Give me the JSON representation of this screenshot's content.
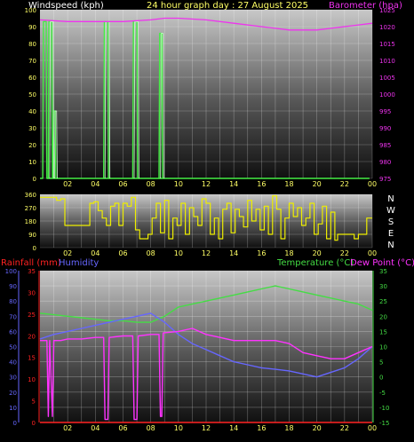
{
  "header": {
    "left_label": "Windspeed (kph)",
    "center_label": "24 hour graph day : 27 August 2025",
    "right_label": "Barometer (hpa)"
  },
  "colors": {
    "windspeed": "#44ee44",
    "gust": "#ccffcc",
    "barometer": "#ee33ee",
    "direction": "#eeee00",
    "rainfall": "#ff2222",
    "humidity": "#6666ff",
    "temperature": "#44dd44",
    "dewpoint": "#ff33ff",
    "axis_text": "#ffff66"
  },
  "x_ticks": [
    "02",
    "04",
    "06",
    "08",
    "10",
    "12",
    "14",
    "16",
    "18",
    "20",
    "22",
    "00"
  ],
  "compass": [
    "N",
    "W",
    "S",
    "E",
    "N"
  ],
  "chart_data": [
    {
      "type": "line",
      "title": "24 hour graph day : 27 August 2025",
      "xlabel": "",
      "ylabel": "Windspeed (kph)",
      "ylabel_right": "Barometer (hpa)",
      "ylim": [
        0,
        100
      ],
      "ylim_right": [
        975,
        1025
      ],
      "yticks_left": [
        0,
        10,
        20,
        30,
        40,
        50,
        60,
        70,
        80,
        90,
        100
      ],
      "yticks_right": [
        975,
        980,
        985,
        990,
        995,
        1000,
        1005,
        1010,
        1015,
        1020,
        1025
      ],
      "xlim_hours": [
        0,
        24
      ],
      "grid": true,
      "series": [
        {
          "name": "Windspeed (kph)",
          "axis": "left",
          "segments": [
            {
              "x": [
                0.0,
                0.2,
                0.25,
                0.45,
                0.5,
                23.8
              ],
              "y": [
                0,
                0,
                93,
                93,
                0,
                0
              ]
            },
            {
              "x": [
                0.6,
                0.65,
                0.85,
                0.9
              ],
              "y": [
                0,
                93,
                93,
                0
              ]
            },
            {
              "x": [
                0.95,
                1.0,
                1.1,
                1.15
              ],
              "y": [
                0,
                40,
                40,
                0
              ]
            },
            {
              "x": [
                4.6,
                4.65,
                4.9,
                4.95
              ],
              "y": [
                0,
                93,
                93,
                0
              ]
            },
            {
              "x": [
                6.7,
                6.75,
                7.0,
                7.05
              ],
              "y": [
                0,
                93,
                93,
                0
              ]
            },
            {
              "x": [
                8.6,
                8.65,
                8.8,
                8.85
              ],
              "y": [
                0,
                86,
                86,
                0
              ]
            }
          ]
        },
        {
          "name": "Barometer (hpa)",
          "axis": "right",
          "x": [
            0,
            2,
            4,
            6,
            8,
            9,
            10,
            12,
            14,
            16,
            17,
            18,
            19,
            20,
            21,
            22,
            23,
            24
          ],
          "y": [
            1022,
            1021.5,
            1021.5,
            1021.5,
            1022,
            1022.5,
            1022.5,
            1022,
            1021,
            1020,
            1019.5,
            1019,
            1019,
            1019,
            1019.5,
            1020,
            1020.5,
            1021
          ]
        }
      ]
    },
    {
      "type": "scatter",
      "ylabel": "",
      "ylim": [
        0,
        360
      ],
      "yticks": [
        0,
        90,
        180,
        270,
        360
      ],
      "xlim_hours": [
        0,
        24
      ],
      "grid": true,
      "series": [
        {
          "name": "Wind direction",
          "x": [
            0,
            0.3,
            0.6,
            0.9,
            1.2,
            1.5,
            1.8,
            2.1,
            2.4,
            2.7,
            3.0,
            3.3,
            3.6,
            3.9,
            4.2,
            4.5,
            4.8,
            5.1,
            5.4,
            5.7,
            6.0,
            6.3,
            6.6,
            6.9,
            7.2,
            7.5,
            7.8,
            8.1,
            8.4,
            8.7,
            9.0,
            9.3,
            9.6,
            9.9,
            10.2,
            10.5,
            10.8,
            11.1,
            11.4,
            11.7,
            12.0,
            12.3,
            12.6,
            12.9,
            13.2,
            13.5,
            13.8,
            14.1,
            14.4,
            14.7,
            15.0,
            15.3,
            15.6,
            15.9,
            16.2,
            16.5,
            16.8,
            17.1,
            17.4,
            17.7,
            18.0,
            18.3,
            18.6,
            18.9,
            19.2,
            19.5,
            19.8,
            20.1,
            20.4,
            20.7,
            21.0,
            21.3,
            21.5,
            21.8,
            22.1,
            22.4,
            22.7,
            23.0,
            23.3,
            23.6,
            24.0
          ],
          "y": [
            340,
            340,
            340,
            340,
            320,
            330,
            150,
            150,
            150,
            150,
            150,
            150,
            300,
            310,
            250,
            200,
            150,
            280,
            300,
            150,
            300,
            280,
            340,
            120,
            60,
            60,
            90,
            200,
            300,
            100,
            320,
            60,
            200,
            150,
            300,
            90,
            270,
            210,
            150,
            330,
            300,
            90,
            200,
            60,
            260,
            300,
            100,
            260,
            210,
            140,
            320,
            180,
            260,
            120,
            280,
            90,
            350,
            260,
            60,
            200,
            300,
            210,
            270,
            150,
            200,
            300,
            90,
            160,
            280,
            60,
            240,
            50,
            90,
            90,
            90,
            90,
            60,
            90,
            90,
            200,
            200
          ]
        }
      ]
    },
    {
      "type": "line",
      "ylabel": "Rainfall (mm)",
      "ylabel_humidity": "Humidity",
      "ylabel_right": "Temperature (°C)",
      "ylabel_right2": "Dew Point (°C)",
      "ylim_humidity": [
        0,
        100
      ],
      "ylim_rain": [
        0,
        35
      ],
      "ylim_right": [
        -15,
        35
      ],
      "yticks_humidity": [
        0,
        10,
        20,
        30,
        40,
        50,
        60,
        70,
        80,
        90,
        100
      ],
      "yticks_rain": [
        0,
        5,
        10,
        15,
        20,
        25,
        30,
        35
      ],
      "yticks_right": [
        -15,
        -10,
        -5,
        0,
        5,
        10,
        15,
        20,
        25,
        30,
        35
      ],
      "xlim_hours": [
        0,
        24
      ],
      "grid": true,
      "series": [
        {
          "name": "Temperature (°C)",
          "axis": "right",
          "x": [
            0,
            1,
            2,
            3,
            4,
            5,
            6,
            7,
            8,
            9,
            10,
            11,
            12,
            13,
            14,
            15,
            16,
            17,
            18,
            19,
            20,
            21,
            22,
            23,
            24
          ],
          "y": [
            21,
            20.5,
            20,
            19.5,
            19,
            18.5,
            18.5,
            18,
            18,
            20,
            23,
            24,
            25,
            26,
            27,
            28,
            29,
            30,
            29,
            28,
            27,
            26,
            25,
            24,
            22
          ]
        },
        {
          "name": "Dew Point (°C)",
          "axis": "right",
          "x": [
            0,
            0.5,
            0.6,
            0.7,
            0.9,
            1.0,
            1.5,
            2,
            3,
            4,
            4.6,
            4.7,
            4.9,
            5.0,
            6,
            6.7,
            6.8,
            7.0,
            7.1,
            8,
            8.6,
            8.7,
            8.8,
            8.9,
            10,
            11,
            12,
            13,
            14,
            15,
            16,
            17,
            18,
            19,
            20,
            21,
            22,
            23,
            24
          ],
          "y": [
            12,
            12,
            -13,
            12,
            -13,
            12,
            12,
            12.5,
            12.5,
            13,
            13,
            -14,
            -14,
            13,
            13.5,
            13.5,
            -14,
            -14,
            13.5,
            14,
            14,
            -13,
            -13,
            14.5,
            15,
            16,
            14,
            13,
            12,
            12,
            12,
            12,
            11,
            8,
            7,
            6,
            6,
            8,
            10
          ]
        },
        {
          "name": "Humidity",
          "axis": "humidity",
          "x": [
            0,
            1,
            2,
            3,
            4,
            5,
            6,
            7,
            8,
            9,
            10,
            11,
            12,
            13,
            14,
            15,
            16,
            17,
            18,
            19,
            20,
            21,
            22,
            23,
            24
          ],
          "y": [
            55,
            58,
            60,
            62,
            64,
            66,
            68,
            70,
            72,
            66,
            58,
            52,
            48,
            44,
            40,
            38,
            36,
            35,
            34,
            32,
            30,
            33,
            36,
            42,
            50
          ]
        },
        {
          "name": "Rainfall (mm)",
          "axis": "rain",
          "x": [
            0,
            24
          ],
          "y": [
            0,
            0
          ]
        }
      ]
    }
  ]
}
